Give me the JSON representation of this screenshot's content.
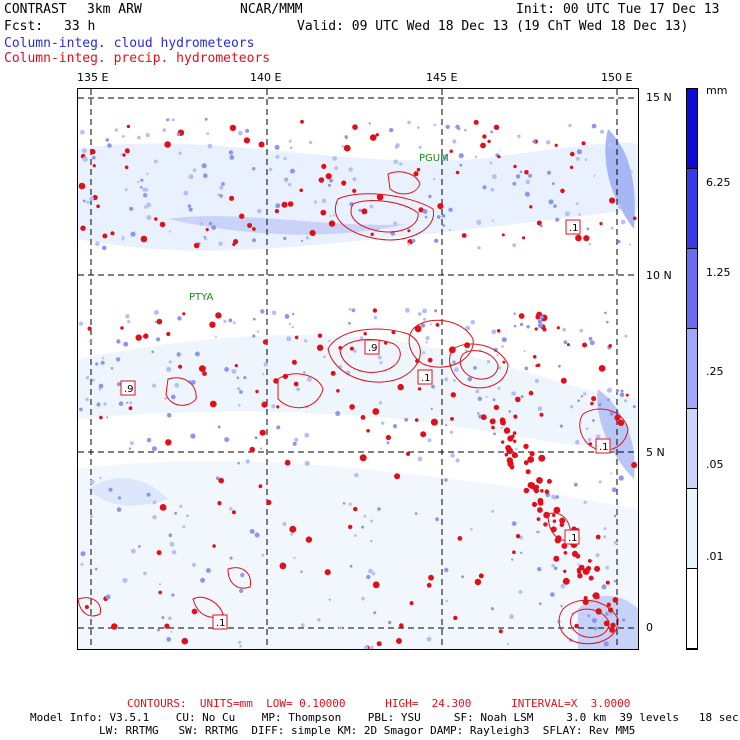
{
  "header": {
    "model": "CONTRAST",
    "res": "3km ARW",
    "org": "NCAR/MMM",
    "init": "Init: 00 UTC Tue 17 Dec 13",
    "fcst_label": "Fcst:",
    "fcst_value": "33 h",
    "valid": "Valid: 09 UTC Wed 18 Dec 13 (19 ChT Wed 18 Dec 13)",
    "legend_cloud": "Column-integ. cloud hydrometeors",
    "legend_precip": "Column-integ. precip. hydrometeors"
  },
  "axes": {
    "lon_labels": [
      "135 E",
      "140 E",
      "145 E",
      "150 E"
    ],
    "lat_labels": [
      "15 N",
      "10 N",
      "5 N",
      "0"
    ]
  },
  "places": {
    "pguam": "PGUM",
    "ptya": "PTYA"
  },
  "contour_labels": [
    ".1",
    ".9",
    ".9",
    ".1",
    ".1",
    ".1",
    ".1"
  ],
  "colorbar": {
    "unit": "mm",
    "levels": [
      "6.25",
      "1.25",
      ".25",
      ".05",
      ".01"
    ],
    "colors": [
      "#0c0cd4",
      "#3a3ae6",
      "#6c6cf0",
      "#9ea8f6",
      "#cdd6fa",
      "#e6f4fb",
      "#ffffff"
    ]
  },
  "footer": {
    "contours": "CONTOURS:  UNITS=mm  LOW= 0.10000      HIGH=  24.300      INTERVAL=X  3.0000",
    "model_info_1": "Model Info: V3.5.1    CU: No Cu    MP: Thompson    PBL: YSU     SF: Noah LSM     3.0 km  39 levels   18 sec",
    "model_info_2": "LW: RRTMG   SW: RRTMG  DIFF: simple KM: 2D Smagor DAMP: Rayleigh3  SFLAY: Rev MM5"
  }
}
